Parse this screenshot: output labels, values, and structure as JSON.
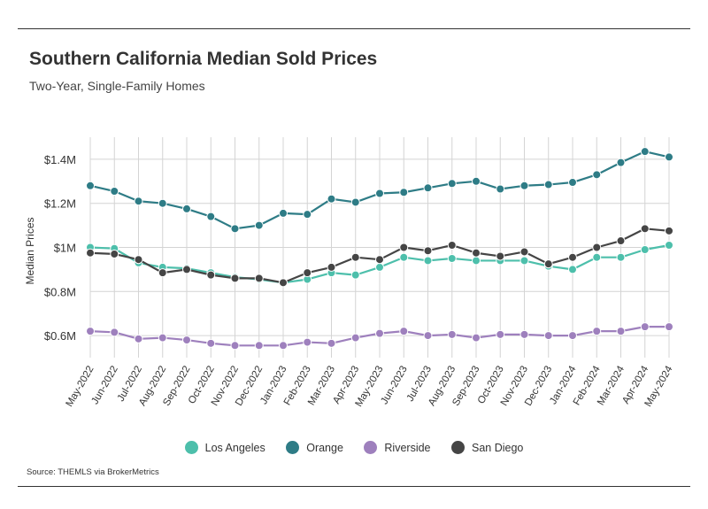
{
  "header": {
    "title": "Southern California Median Sold Prices",
    "subtitle": "Two-Year, Single-Family Homes"
  },
  "footer": {
    "source": "Source:  THEMLS via BrokerMetrics"
  },
  "chart_data": {
    "type": "line",
    "title": "Southern California Median Sold Prices",
    "subtitle": "Two-Year, Single-Family Homes",
    "xlabel": "",
    "ylabel": "Median Prices",
    "ylim": [
      500000,
      1500000
    ],
    "yticks": [
      600000,
      800000,
      1000000,
      1200000,
      1400000
    ],
    "ytick_labels": [
      "$0.6M",
      "$0.8M",
      "$1M",
      "$1.2M",
      "$1.4M"
    ],
    "grid": true,
    "legend_position": "bottom",
    "categories": [
      "May-2022",
      "Jun-2022",
      "Jul-2022",
      "Aug-2022",
      "Sep-2022",
      "Oct-2022",
      "Nov-2022",
      "Dec-2022",
      "Jan-2023",
      "Feb-2023",
      "Mar-2023",
      "Apr-2023",
      "May-2023",
      "Jun-2023",
      "Jul-2023",
      "Aug-2023",
      "Sep-2023",
      "Oct-2023",
      "Nov-2023",
      "Dec-2023",
      "Jan-2024",
      "Feb-2024",
      "Mar-2024",
      "Apr-2024",
      "May-2024"
    ],
    "series": [
      {
        "name": "Los Angeles",
        "color": "#4dbfab",
        "values": [
          1000000,
          995000,
          930000,
          910000,
          905000,
          885000,
          865000,
          855000,
          840000,
          855000,
          885000,
          875000,
          910000,
          955000,
          940000,
          950000,
          940000,
          940000,
          940000,
          915000,
          900000,
          955000,
          955000,
          990000,
          1010000
        ]
      },
      {
        "name": "Orange",
        "color": "#2e7c86",
        "values": [
          1280000,
          1255000,
          1210000,
          1200000,
          1175000,
          1140000,
          1085000,
          1100000,
          1155000,
          1150000,
          1220000,
          1205000,
          1245000,
          1250000,
          1270000,
          1290000,
          1300000,
          1265000,
          1280000,
          1285000,
          1295000,
          1330000,
          1385000,
          1435000,
          1410000
        ]
      },
      {
        "name": "Riverside",
        "color": "#9e80bd",
        "values": [
          620000,
          615000,
          585000,
          590000,
          580000,
          565000,
          555000,
          555000,
          555000,
          570000,
          565000,
          590000,
          610000,
          620000,
          600000,
          605000,
          590000,
          605000,
          605000,
          600000,
          600000,
          620000,
          620000,
          640000,
          640000
        ]
      },
      {
        "name": "San Diego",
        "color": "#454545",
        "values": [
          975000,
          970000,
          945000,
          885000,
          900000,
          875000,
          860000,
          860000,
          840000,
          885000,
          910000,
          955000,
          945000,
          1000000,
          985000,
          1010000,
          975000,
          960000,
          980000,
          925000,
          955000,
          1000000,
          1030000,
          1085000,
          1075000
        ]
      }
    ]
  }
}
